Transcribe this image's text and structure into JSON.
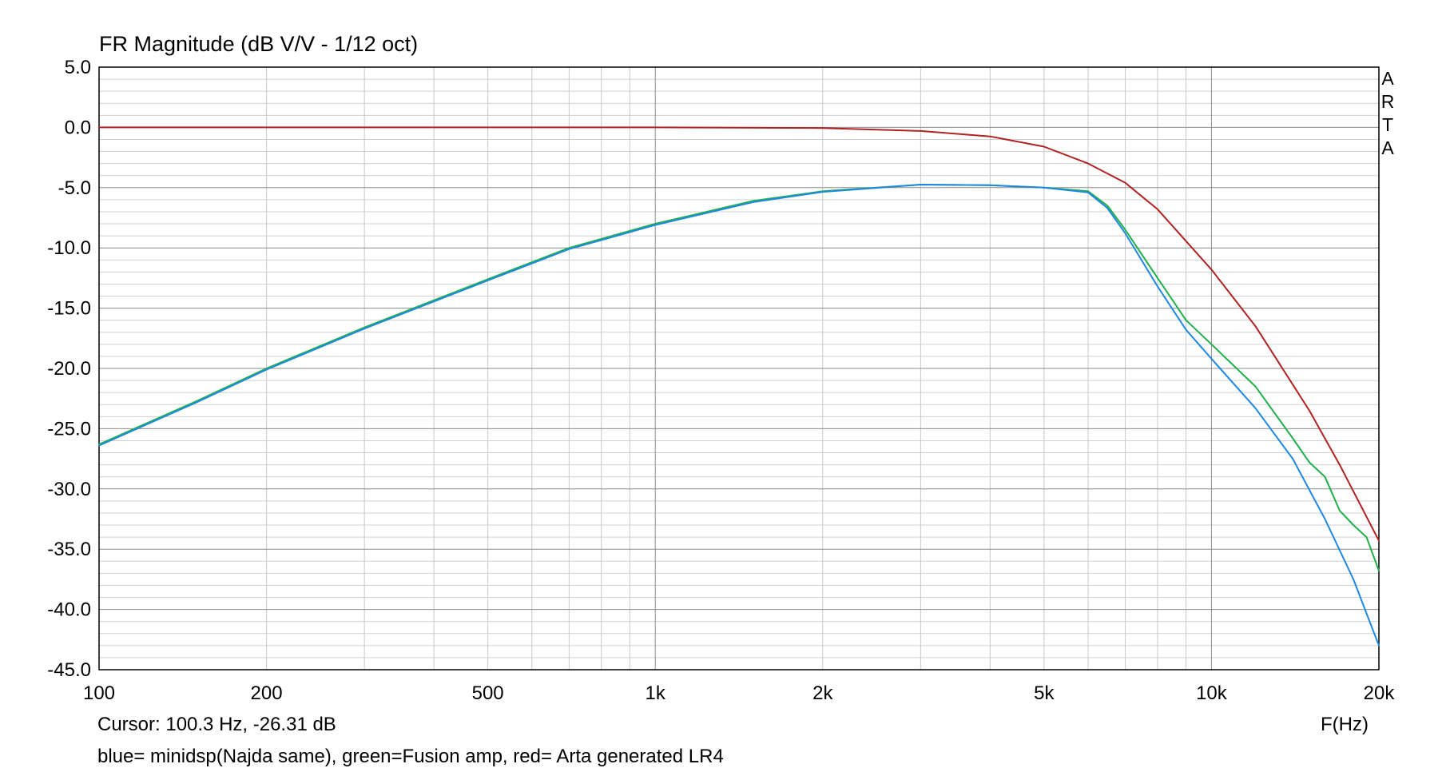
{
  "chart_data": {
    "type": "line",
    "title": "FR Magnitude (dB V/V - 1/12 oct)",
    "side_label": [
      "A",
      "R",
      "T",
      "A"
    ],
    "xlabel": "F(Hz)",
    "ylabel": "",
    "xscale": "log",
    "xlim": [
      100,
      20000
    ],
    "ylim": [
      -45,
      5
    ],
    "yticks": [
      5,
      0,
      -5,
      -10,
      -15,
      -20,
      -25,
      -30,
      -35,
      -40,
      -45
    ],
    "ytick_labels": [
      "5.0",
      "0.0",
      "-5.0",
      "-10.0",
      "-15.0",
      "-20.0",
      "-25.0",
      "-30.0",
      "-35.0",
      "-40.0",
      "-45.0"
    ],
    "xticks": [
      100,
      200,
      500,
      1000,
      2000,
      5000,
      10000,
      20000
    ],
    "xtick_labels": [
      "100",
      "200",
      "500",
      "1k",
      "2k",
      "5k",
      "10k",
      "20k"
    ],
    "grid": true,
    "series": [
      {
        "color": "#b22222",
        "x": [
          100,
          200,
          500,
          1000,
          2000,
          3000,
          4000,
          5000,
          6000,
          7000,
          8000,
          10000,
          12000,
          15000,
          17000,
          20000
        ],
        "y": [
          0,
          0,
          0,
          0,
          -0.05,
          -0.3,
          -0.75,
          -1.6,
          -3.0,
          -4.6,
          -6.8,
          -11.8,
          -16.5,
          -23.5,
          -28.0,
          -34.3
        ]
      },
      {
        "color": "#20b04a",
        "x": [
          100,
          150,
          200,
          300,
          500,
          700,
          1000,
          1500,
          2000,
          3000,
          4000,
          5000,
          6000,
          6500,
          7000,
          8000,
          9000,
          10000,
          12000,
          14000,
          15000,
          16000,
          17000,
          18000,
          19000,
          20000
        ],
        "y": [
          -26.3,
          -22.7,
          -20.0,
          -16.6,
          -12.6,
          -10.0,
          -8.0,
          -6.1,
          -5.3,
          -4.75,
          -4.8,
          -5.0,
          -5.3,
          -6.5,
          -8.5,
          -12.5,
          -16.0,
          -18.0,
          -21.5,
          -25.8,
          -27.8,
          -29.0,
          -31.8,
          -33.0,
          -34.0,
          -36.8
        ]
      },
      {
        "color": "#1e88e5",
        "x": [
          100,
          150,
          200,
          300,
          500,
          700,
          1000,
          1500,
          2000,
          3000,
          4000,
          5000,
          6000,
          6500,
          7000,
          8000,
          9000,
          10000,
          12000,
          14000,
          16000,
          18000,
          20000
        ],
        "y": [
          -26.4,
          -22.8,
          -20.1,
          -16.7,
          -12.7,
          -10.1,
          -8.1,
          -6.2,
          -5.35,
          -4.75,
          -4.8,
          -5.0,
          -5.4,
          -6.7,
          -8.8,
          -13.2,
          -16.8,
          -19.2,
          -23.3,
          -27.5,
          -32.5,
          -37.5,
          -43.0
        ]
      }
    ],
    "cursor_text": "Cursor: 100.3 Hz, -26.31 dB",
    "note": "blue= minidsp(Najda same), green=Fusion amp, red= Arta generated LR4"
  }
}
